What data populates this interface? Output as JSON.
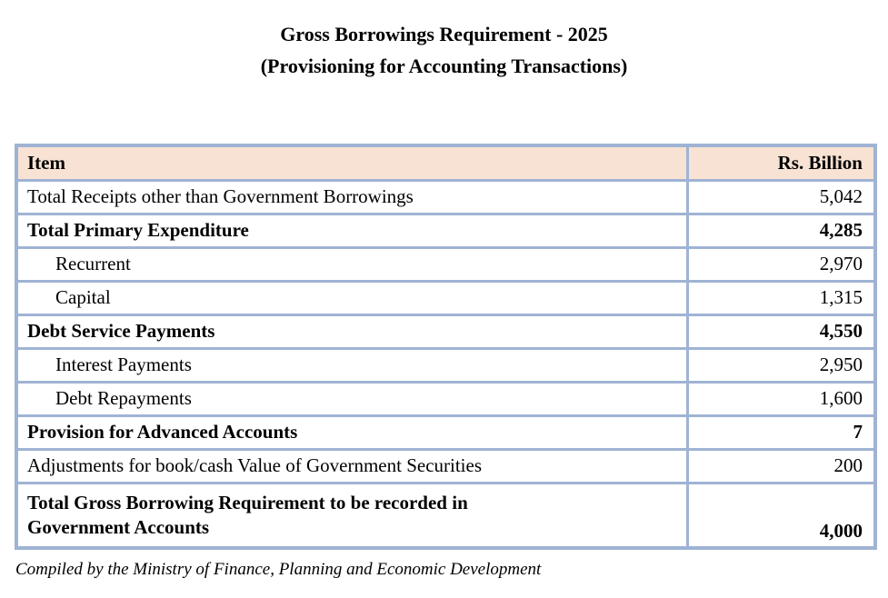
{
  "title": {
    "line1": "Gross Borrowings Requirement - 2025",
    "line2": "(Provisioning for Accounting Transactions)"
  },
  "table": {
    "columns": [
      {
        "label": "Item"
      },
      {
        "label": "Rs. Billion"
      }
    ],
    "rows": [
      {
        "label": "Total Receipts other than Government Borrowings",
        "value": "5,042",
        "bold": false,
        "indent": false,
        "tall": false
      },
      {
        "label": "Total Primary Expenditure",
        "value": "4,285",
        "bold": true,
        "indent": false,
        "tall": false
      },
      {
        "label": "Recurrent",
        "value": "2,970",
        "bold": false,
        "indent": true,
        "tall": false
      },
      {
        "label": "Capital",
        "value": "1,315",
        "bold": false,
        "indent": true,
        "tall": false
      },
      {
        "label": "Debt Service Payments",
        "value": "4,550",
        "bold": true,
        "indent": false,
        "tall": false
      },
      {
        "label": "Interest Payments",
        "value": "2,950",
        "bold": false,
        "indent": true,
        "tall": false
      },
      {
        "label": "Debt Repayments",
        "value": "1,600",
        "bold": false,
        "indent": true,
        "tall": false
      },
      {
        "label": "Provision for Advanced Accounts",
        "value": "7",
        "bold": true,
        "indent": false,
        "tall": false
      },
      {
        "label": "Adjustments for book/cash Value of Government Securities",
        "value": "200",
        "bold": false,
        "indent": false,
        "tall": false
      },
      {
        "label": "Total Gross Borrowing Requirement to be recorded in\nGovernment Accounts",
        "value": "4,000",
        "bold": true,
        "indent": false,
        "tall": true
      }
    ]
  },
  "footer": {
    "note": "Compiled by the Ministry of Finance, Planning and Economic Development"
  },
  "colors": {
    "header_bg": "#F7E2D3",
    "border": "#9FB3D4",
    "text": "#000000",
    "background": "#FFFFFF"
  }
}
